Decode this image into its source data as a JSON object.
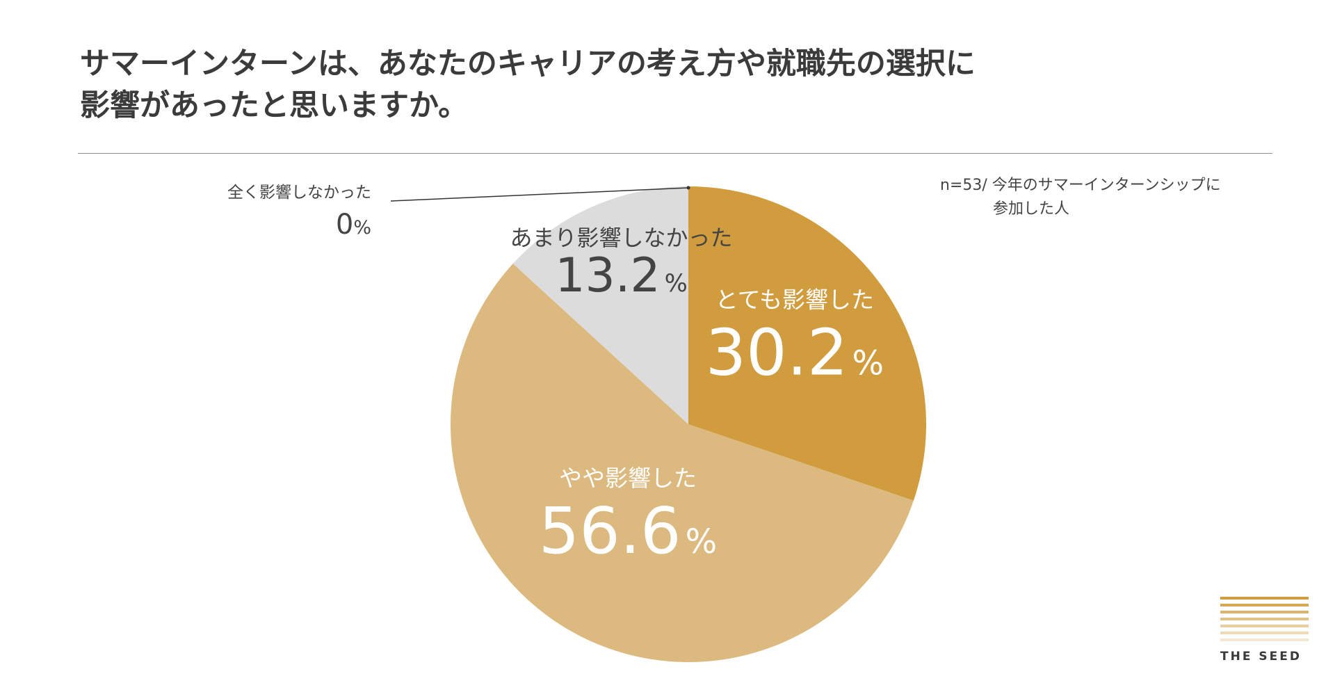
{
  "title": {
    "line1": "サマーインターンは、あなたのキャリアの考え方や就職先の選択に",
    "line2": "影響があったと思いますか。"
  },
  "note": {
    "line1": "n=53/ 今年のサマーインターンシップに",
    "line2": "参加した人"
  },
  "chart_data": {
    "type": "pie",
    "start_angle": "12 o'clock",
    "direction": "clockwise",
    "slices": [
      {
        "label": "とても影響した",
        "value": 30.2,
        "value_text": "30.2",
        "unit": "%",
        "color": "#D09C3E",
        "text_color": "#ffffff"
      },
      {
        "label": "やや影響した",
        "value": 56.6,
        "value_text": "56.6",
        "unit": "%",
        "color": "#DCB97E",
        "text_color": "#ffffff"
      },
      {
        "label": "あまり影響しなかった",
        "value": 13.2,
        "value_text": "13.2",
        "unit": "%",
        "color": "#DCDCDC",
        "text_color": "#444444"
      },
      {
        "label": "全く影響しなかった",
        "value": 0,
        "value_text": "0",
        "unit": "%",
        "color": "#DCDCDC",
        "text_color": "#444444"
      }
    ]
  },
  "logo": {
    "brand": "THE SEED",
    "bar_colors": [
      "#D09C3E",
      "#D6A955",
      "#DCB56D",
      "#E2C186",
      "#E8CE9F",
      "#EEDAB8",
      "#F4E7D2"
    ]
  }
}
